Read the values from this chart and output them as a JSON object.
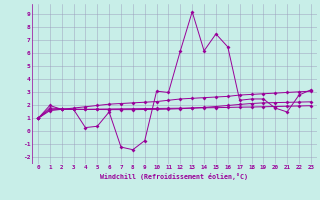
{
  "xlabel": "Windchill (Refroidissement éolien,°C)",
  "bg_color": "#c8eee8",
  "line_color": "#990099",
  "grid_color": "#9999bb",
  "xlim": [
    -0.5,
    23.5
  ],
  "ylim": [
    -2.5,
    9.8
  ],
  "xticks": [
    0,
    1,
    2,
    3,
    4,
    5,
    6,
    7,
    8,
    9,
    10,
    11,
    12,
    13,
    14,
    15,
    16,
    17,
    18,
    19,
    20,
    21,
    22,
    23
  ],
  "yticks": [
    -2,
    -1,
    0,
    1,
    2,
    3,
    4,
    5,
    6,
    7,
    8,
    9
  ],
  "series": [
    [
      1.0,
      2.0,
      1.7,
      1.7,
      0.3,
      0.4,
      1.5,
      -1.2,
      -1.4,
      -0.7,
      3.1,
      3.0,
      6.2,
      9.2,
      6.2,
      7.5,
      6.5,
      2.4,
      2.5,
      2.5,
      1.8,
      1.5,
      2.8,
      3.2
    ],
    [
      1.0,
      1.8,
      1.75,
      1.72,
      1.7,
      1.69,
      1.68,
      1.68,
      1.68,
      1.69,
      1.7,
      1.72,
      1.75,
      1.8,
      1.85,
      1.92,
      2.0,
      2.08,
      2.15,
      2.2,
      2.22,
      2.24,
      2.26,
      2.28
    ],
    [
      1.0,
      1.6,
      1.7,
      1.8,
      1.9,
      2.0,
      2.1,
      2.15,
      2.2,
      2.25,
      2.3,
      2.4,
      2.5,
      2.55,
      2.6,
      2.65,
      2.7,
      2.8,
      2.85,
      2.9,
      2.95,
      3.0,
      3.05,
      3.1
    ],
    [
      1.0,
      1.7,
      1.7,
      1.7,
      1.7,
      1.72,
      1.73,
      1.74,
      1.75,
      1.76,
      1.77,
      1.78,
      1.79,
      1.8,
      1.82,
      1.83,
      1.85,
      1.87,
      1.88,
      1.9,
      1.92,
      1.94,
      1.96,
      1.98
    ]
  ]
}
